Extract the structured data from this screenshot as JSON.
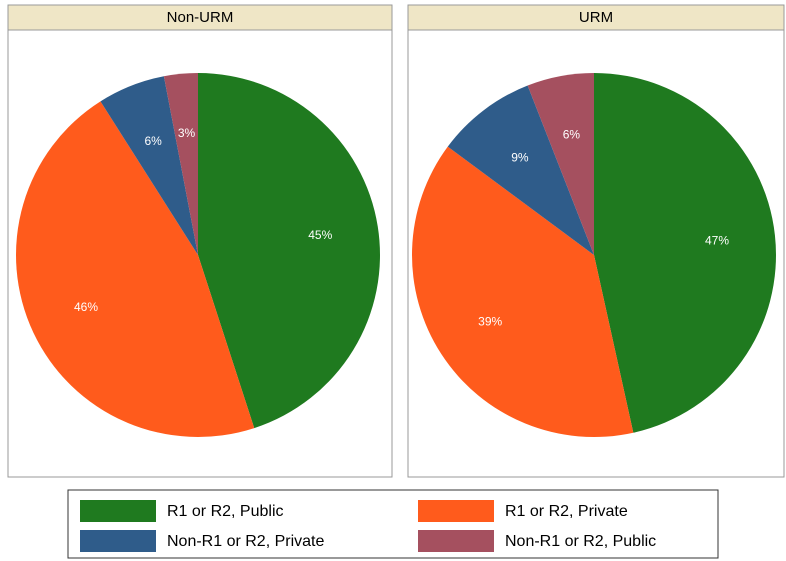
{
  "legend": {
    "labels": [
      "R1 or R2, Public",
      "R1 or R2, Private",
      "Non-R1 or R2, Private",
      "Non-R1 or R2, Public"
    ],
    "colors": [
      "#1f7a1f",
      "#ff5b1c",
      "#2f5c8a",
      "#a5505f"
    ]
  },
  "chart_data": [
    {
      "type": "pie",
      "title": "Non-URM",
      "values": [
        45,
        46,
        6,
        3
      ],
      "value_labels": [
        "45%",
        "46%",
        "6%",
        "3%"
      ]
    },
    {
      "type": "pie",
      "title": "URM",
      "values": [
        47,
        39,
        9,
        6
      ],
      "value_labels": [
        "47%",
        "39%",
        "9%",
        "6%"
      ]
    }
  ]
}
